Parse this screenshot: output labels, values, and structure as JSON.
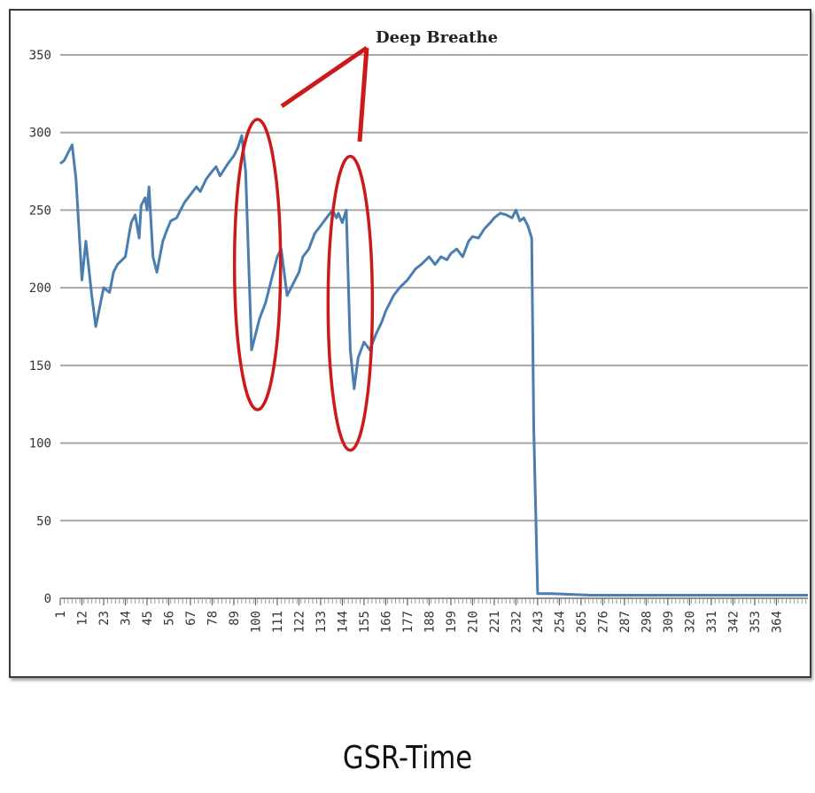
{
  "caption": "GSR-Time",
  "colors": {
    "line": "#4a7eb0",
    "grid": "#a6a6a6",
    "annotation": "#cc1a1a",
    "frame": "#3a3a3a"
  },
  "chart_data": {
    "type": "line",
    "title": "",
    "xlabel": "",
    "ylabel": "",
    "ylim": [
      0,
      350
    ],
    "yticks": [
      0,
      50,
      100,
      150,
      200,
      250,
      300,
      350
    ],
    "xlim": [
      1,
      380
    ],
    "xticks": [
      1,
      12,
      23,
      34,
      45,
      56,
      67,
      78,
      89,
      100,
      111,
      122,
      133,
      144,
      155,
      166,
      177,
      188,
      199,
      210,
      221,
      232,
      243,
      254,
      265,
      276,
      287,
      298,
      309,
      320,
      331,
      342,
      353,
      364
    ],
    "grid": true,
    "legend": "none",
    "series": [
      {
        "x": [
          1,
          3,
          5,
          7,
          9,
          12,
          14,
          17,
          19,
          23,
          26,
          28,
          30,
          34,
          36,
          37,
          39,
          41,
          42,
          44,
          45,
          46,
          48,
          50,
          53,
          55,
          57,
          60,
          62,
          64,
          67,
          70,
          72,
          75,
          78,
          80,
          82,
          86,
          89,
          91,
          93,
          95,
          98,
          100,
          102,
          105,
          108,
          111,
          113,
          116,
          120,
          122,
          124,
          127,
          130,
          133,
          136,
          139,
          141,
          142,
          144,
          146,
          148,
          150,
          152,
          155,
          158,
          161,
          164,
          166,
          170,
          173,
          177,
          181,
          184,
          188,
          191,
          194,
          197,
          199,
          202,
          205,
          208,
          210,
          213,
          216,
          219,
          221,
          224,
          227,
          230,
          232,
          234,
          236,
          238,
          239,
          240,
          241,
          243,
          250,
          270,
          300,
          330,
          360,
          380
        ],
        "values": [
          280,
          282,
          287,
          292,
          270,
          205,
          230,
          195,
          175,
          200,
          197,
          210,
          215,
          220,
          235,
          242,
          247,
          232,
          253,
          258,
          250,
          265,
          220,
          210,
          230,
          237,
          243,
          245,
          250,
          255,
          260,
          265,
          262,
          270,
          275,
          278,
          272,
          280,
          285,
          290,
          298,
          275,
          160,
          170,
          180,
          190,
          205,
          220,
          225,
          195,
          205,
          210,
          220,
          225,
          235,
          240,
          245,
          250,
          245,
          248,
          242,
          250,
          160,
          135,
          155,
          165,
          160,
          170,
          178,
          185,
          195,
          200,
          205,
          212,
          215,
          220,
          215,
          220,
          218,
          222,
          225,
          220,
          230,
          233,
          232,
          238,
          242,
          245,
          248,
          247,
          245,
          250,
          243,
          245,
          240,
          236,
          232,
          110,
          3,
          3,
          2,
          2,
          2,
          2,
          2
        ]
      }
    ],
    "annotations": [
      {
        "text": "Deep Breathe"
      }
    ]
  }
}
